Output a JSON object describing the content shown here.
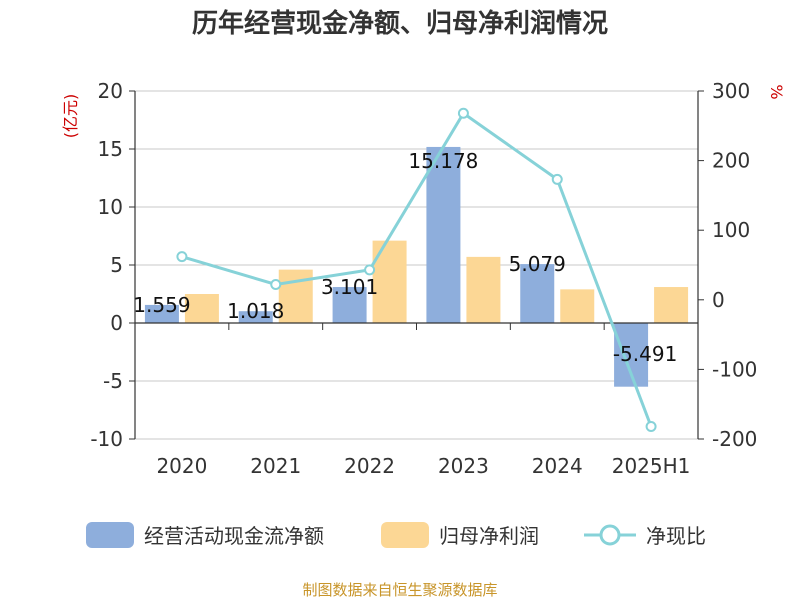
{
  "chart_data": {
    "type": "bar",
    "title": "历年经营现金净额、归母净利润情况",
    "categories": [
      "2020",
      "2021",
      "2022",
      "2023",
      "2024",
      "2025H1"
    ],
    "y_left": {
      "unit": "(亿元)",
      "min": -10,
      "max": 20,
      "ticks": [
        20,
        15,
        10,
        5,
        0,
        -5,
        -10
      ]
    },
    "y_right": {
      "unit": "%",
      "min": -200,
      "max": 300,
      "ticks": [
        300,
        200,
        100,
        0,
        -100,
        -200
      ]
    },
    "series": [
      {
        "name": "经营活动现金流净额",
        "type": "bar",
        "axis": "left",
        "color": "#8eaedc",
        "values": [
          1.559,
          1.018,
          3.101,
          15.178,
          5.079,
          -5.491
        ],
        "labels": [
          "1.559",
          "1.018",
          "3.101",
          "15.178",
          "5.079",
          "-5.491"
        ]
      },
      {
        "name": "归母净利润",
        "type": "bar",
        "axis": "left",
        "color": "#fcd795",
        "values": [
          2.5,
          4.6,
          7.1,
          5.7,
          2.9,
          3.1
        ]
      },
      {
        "name": "净现比",
        "type": "line",
        "axis": "right",
        "color": "#86d2d8",
        "values": [
          62,
          22,
          43,
          268,
          173,
          -182
        ]
      }
    ],
    "grid": true,
    "legend_position": "bottom"
  },
  "source": "制图数据来自恒生聚源数据库"
}
